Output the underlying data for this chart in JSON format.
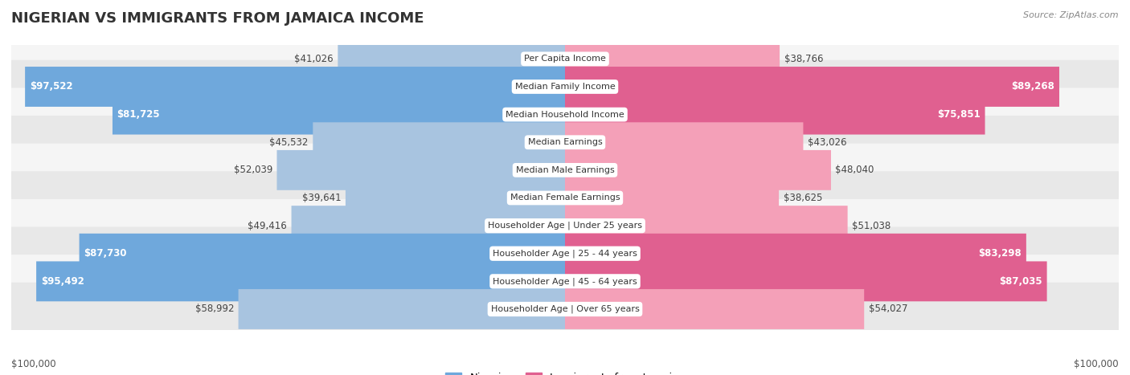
{
  "title": "NIGERIAN VS IMMIGRANTS FROM JAMAICA INCOME",
  "source": "Source: ZipAtlas.com",
  "categories": [
    "Per Capita Income",
    "Median Family Income",
    "Median Household Income",
    "Median Earnings",
    "Median Male Earnings",
    "Median Female Earnings",
    "Householder Age | Under 25 years",
    "Householder Age | 25 - 44 years",
    "Householder Age | 45 - 64 years",
    "Householder Age | Over 65 years"
  ],
  "nigerian_values": [
    41026,
    97522,
    81725,
    45532,
    52039,
    39641,
    49416,
    87730,
    95492,
    58992
  ],
  "jamaican_values": [
    38766,
    89268,
    75851,
    43026,
    48040,
    38625,
    51038,
    83298,
    87035,
    54027
  ],
  "max_value": 100000,
  "nigerian_labels": [
    "$41,026",
    "$97,522",
    "$81,725",
    "$45,532",
    "$52,039",
    "$39,641",
    "$49,416",
    "$87,730",
    "$95,492",
    "$58,992"
  ],
  "jamaican_labels": [
    "$38,766",
    "$89,268",
    "$75,851",
    "$43,026",
    "$48,040",
    "$38,625",
    "$51,038",
    "$83,298",
    "$87,035",
    "$54,027"
  ],
  "nigerian_color_light": "#a8c4e0",
  "nigerian_color_dark": "#6fa8dc",
  "jamaican_color_light": "#f4a0b8",
  "jamaican_color_dark": "#e06090",
  "bg_color": "#ffffff",
  "row_bg_even": "#f5f5f5",
  "row_bg_odd": "#e8e8e8",
  "label_threshold": 75000,
  "x_axis_label_left": "$100,000",
  "x_axis_label_right": "$100,000",
  "legend_nigerian": "Nigerian",
  "legend_jamaican": "Immigrants from Jamaica",
  "title_fontsize": 13,
  "label_fontsize": 8.5,
  "cat_fontsize": 8.0
}
